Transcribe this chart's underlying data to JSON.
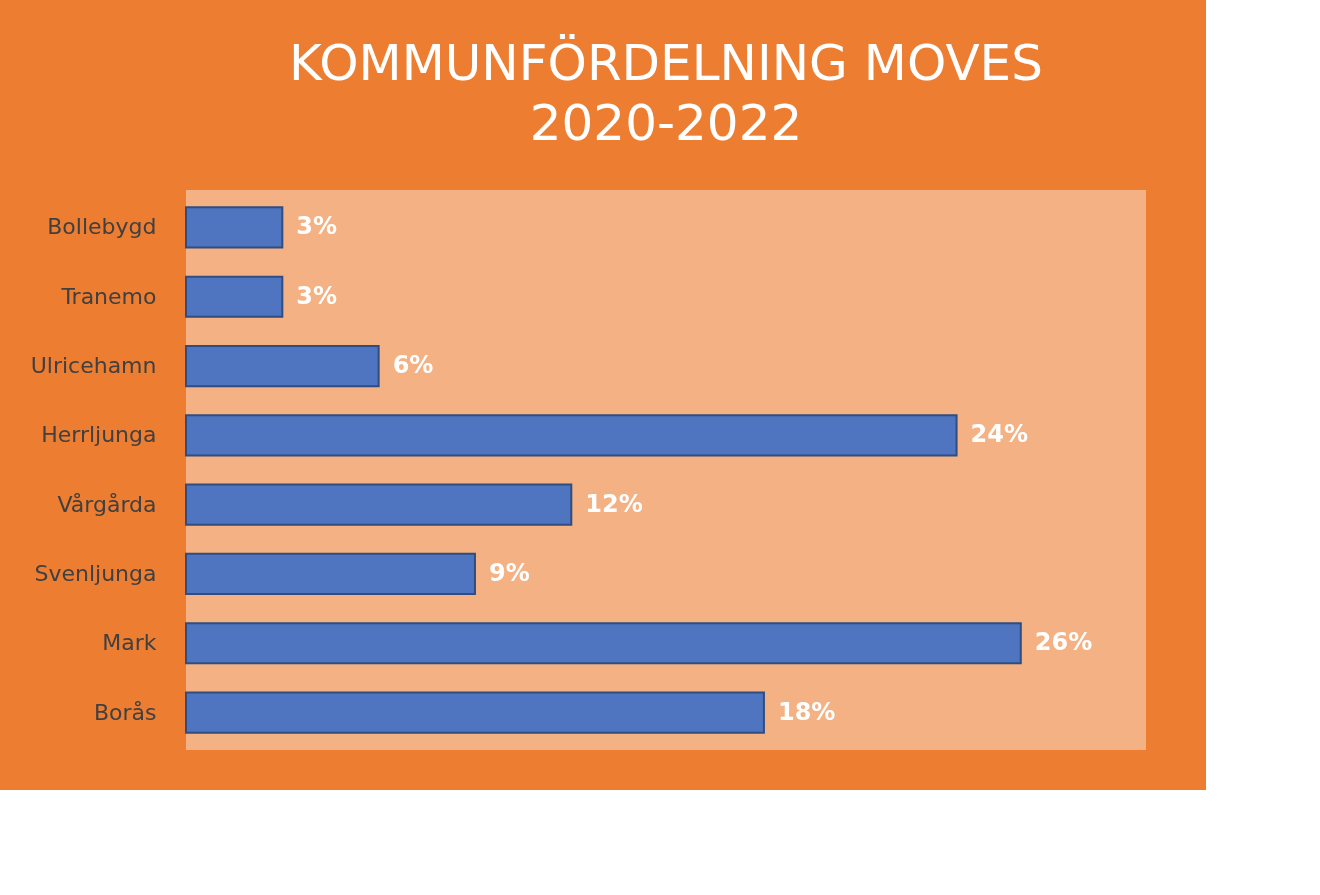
{
  "chart_data": {
    "type": "bar",
    "orientation": "horizontal",
    "title": "KOMMUNFÖRDELNING MOVES",
    "subtitle": "2020-2022",
    "categories": [
      "Bollebygd",
      "Tranemo",
      "Ulricehamn",
      "Herrljunga",
      "Vårgårda",
      "Svenljunga",
      "Mark",
      "Borås"
    ],
    "values": [
      3,
      3,
      6,
      24,
      12,
      9,
      26,
      18
    ],
    "value_labels": [
      "3%",
      "3%",
      "6%",
      "24%",
      "12%",
      "9%",
      "26%",
      "18%"
    ],
    "color": "#4f75c0"
  }
}
